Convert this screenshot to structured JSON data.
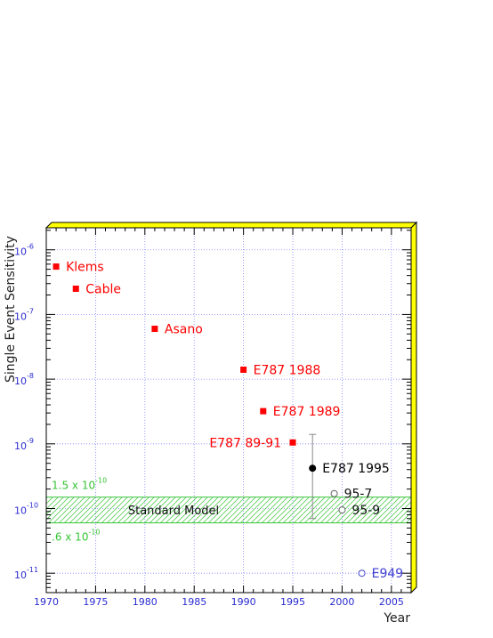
{
  "chart_data": {
    "type": "scatter",
    "xlabel": "Year",
    "ylabel": "Single Event Sensitivity",
    "xlim": [
      1970,
      2007
    ],
    "ylog": true,
    "ylim_exp": [
      -11.3,
      -5.66
    ],
    "x_ticks": [
      "1970",
      "1975",
      "1980",
      "1985",
      "1990",
      "1995",
      "2000",
      "2005"
    ],
    "y_ticks": [
      {
        "base": "10",
        "exp": "-6",
        "value": -6
      },
      {
        "base": "10",
        "exp": "-7",
        "value": -7
      },
      {
        "base": "10",
        "exp": "-8",
        "value": -8
      },
      {
        "base": "10",
        "exp": "-9",
        "value": -9
      },
      {
        "base": "10",
        "exp": "-10",
        "value": -10
      },
      {
        "base": "10",
        "exp": "-11",
        "value": -11
      }
    ],
    "grid": true,
    "points": [
      {
        "label": "Klems",
        "x": 1971,
        "y": 5.5e-07,
        "marker": "square",
        "color": "#ff0000"
      },
      {
        "label": "Cable",
        "x": 1973,
        "y": 2.5e-07,
        "marker": "square",
        "color": "#ff0000"
      },
      {
        "label": "Asano",
        "x": 1981,
        "y": 6e-08,
        "marker": "square",
        "color": "#ff0000"
      },
      {
        "label": "E787 1988",
        "x": 1990,
        "y": 1.4e-08,
        "marker": "square",
        "color": "#ff0000"
      },
      {
        "label": "E787 1989",
        "x": 1992,
        "y": 3.2e-09,
        "marker": "square",
        "color": "#ff0000"
      },
      {
        "label": "E787 89-91",
        "x": 1995,
        "y": 1.05e-09,
        "marker": "square",
        "color": "#ff0000",
        "label_side": "left"
      },
      {
        "label": "E787 1995",
        "x": 1997,
        "y": 4.2e-10,
        "marker": "filled-circle",
        "color": "#000000",
        "err_low": 7e-11,
        "err_high": 1.4e-09
      },
      {
        "label": "95-7",
        "x": 1999.2,
        "y": 1.7e-10,
        "marker": "open-circle",
        "color": "#666666"
      },
      {
        "label": "95-9",
        "x": 2000,
        "y": 9.5e-11,
        "marker": "open-circle",
        "color": "#666666"
      },
      {
        "label": "E949",
        "x": 2002,
        "y": 1e-11,
        "marker": "open-circle",
        "color": "#4040d0"
      }
    ],
    "band": {
      "label": "Standard Model",
      "low": 6e-11,
      "high": 1.5e-10,
      "upper_note": {
        "text": "1.5 x 10",
        "exp": "-10"
      },
      "lower_note": {
        "text": ".6 x 10",
        "exp": "-10"
      },
      "color": "#36c436"
    },
    "frame_accent": "#ffff00"
  }
}
